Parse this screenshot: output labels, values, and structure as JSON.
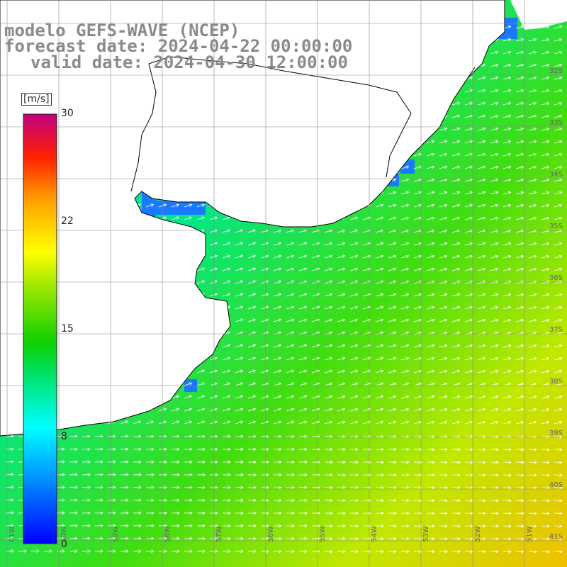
{
  "title": {
    "line1": "modelo GEFS-WAVE (NCEP)",
    "line2": "forecast date: 2024-04-22 00:00:00",
    "line3": "valid date: 2024-04-30 12:00:00"
  },
  "colorbar": {
    "unit": "[m/s]",
    "ticks": [
      "30",
      "22",
      "15",
      "8",
      "0"
    ],
    "colors": [
      "#0000ff",
      "#00a0ff",
      "#00ffff",
      "#00e060",
      "#00d000",
      "#70e000",
      "#ffff00",
      "#ffb000",
      "#ff6000",
      "#ff0000",
      "#d00060",
      "#c00080"
    ]
  },
  "map": {
    "lat_labels": [
      "32S",
      "33S",
      "34S",
      "35S",
      "36S",
      "37S",
      "38S",
      "39S",
      "40S",
      "41S"
    ],
    "lon_labels": [
      "61W",
      "60W",
      "59W",
      "58W",
      "57W",
      "56W",
      "55W",
      "54W",
      "53W",
      "52W",
      "51W"
    ],
    "colors": {
      "land": "#ffffff",
      "coast": "#000000",
      "grid": "#888888",
      "arrow": "#ffffff"
    }
  }
}
